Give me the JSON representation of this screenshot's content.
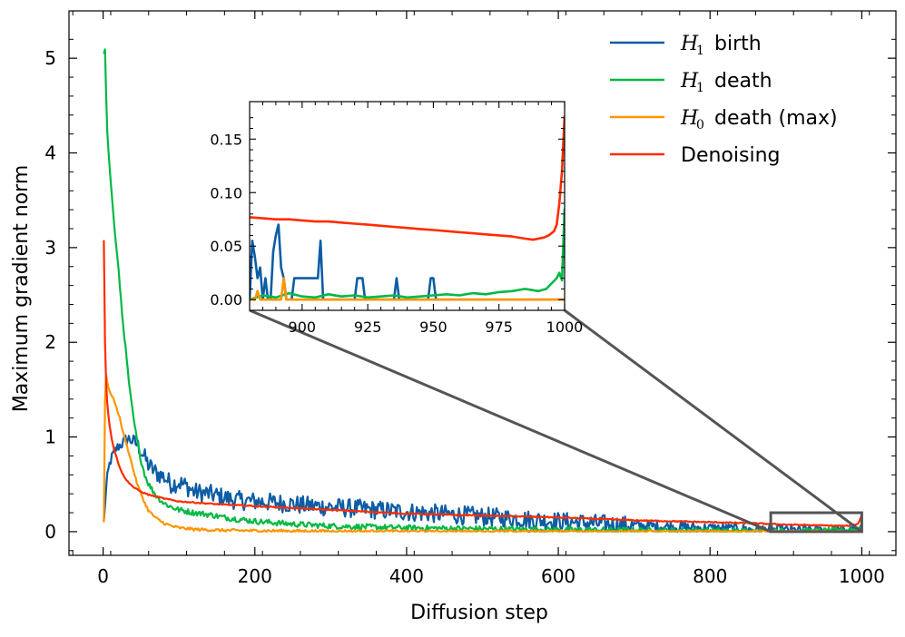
{
  "chart_data": {
    "type": "line",
    "title": "",
    "xlabel": "Diffusion step",
    "ylabel": "Maximum gradient norm",
    "xlim": [
      -45,
      1045
    ],
    "ylim": [
      -0.25,
      5.5
    ],
    "x_ticks": [
      0,
      200,
      400,
      600,
      800,
      1000
    ],
    "x_tick_labels": [
      "0",
      "200",
      "400",
      "600",
      "800",
      "1000"
    ],
    "y_ticks": [
      0,
      1,
      2,
      3,
      4,
      5
    ],
    "y_tick_labels": [
      "0",
      "1",
      "2",
      "3",
      "4",
      "5"
    ],
    "legend_position": "top-right",
    "series": [
      {
        "name": "H1 birth",
        "label_symbol": "H",
        "label_subscript": "1",
        "label_rest": "birth",
        "color": "#0C5DA5",
        "x": [
          1,
          3,
          5,
          8,
          12,
          16,
          20,
          25,
          30,
          35,
          40,
          45,
          50,
          55,
          60,
          70,
          80,
          90,
          100,
          110,
          120,
          130,
          140,
          150,
          160,
          170,
          180,
          200,
          220,
          240,
          260,
          280,
          300,
          320,
          340,
          360,
          380,
          400,
          420,
          440,
          460,
          480,
          500,
          520,
          540,
          560,
          580,
          600,
          620,
          640,
          660,
          680,
          700,
          720,
          740,
          760,
          780,
          800,
          820,
          840,
          860,
          880,
          900,
          920,
          940,
          960,
          980,
          1000
        ],
        "y": [
          0.1,
          0.35,
          0.55,
          0.7,
          0.8,
          0.86,
          0.9,
          0.93,
          0.97,
          0.98,
          0.95,
          0.92,
          0.85,
          0.78,
          0.7,
          0.62,
          0.58,
          0.5,
          0.52,
          0.48,
          0.42,
          0.41,
          0.4,
          0.38,
          0.36,
          0.34,
          0.33,
          0.32,
          0.31,
          0.3,
          0.28,
          0.27,
          0.26,
          0.25,
          0.24,
          0.23,
          0.22,
          0.21,
          0.2,
          0.19,
          0.18,
          0.17,
          0.16,
          0.15,
          0.14,
          0.13,
          0.12,
          0.11,
          0.1,
          0.09,
          0.08,
          0.07,
          0.065,
          0.06,
          0.055,
          0.05,
          0.04,
          0.035,
          0.03,
          0.025,
          0.02,
          0.015,
          0.01,
          0.01,
          0.012,
          0.008,
          0.006,
          0.005
        ],
        "noise": 0.1
      },
      {
        "name": "H1 death",
        "label_symbol": "H",
        "label_subscript": "1",
        "label_rest": "death",
        "color": "#00B945",
        "x": [
          1,
          2,
          3,
          5,
          8,
          10,
          12,
          15,
          18,
          20,
          25,
          30,
          35,
          40,
          45,
          50,
          55,
          60,
          70,
          80,
          90,
          100,
          120,
          140,
          160,
          180,
          200,
          250,
          300,
          400,
          500,
          600,
          700,
          800,
          880,
          950,
          990,
          1000
        ],
        "y": [
          5.05,
          5.3,
          4.9,
          4.3,
          3.9,
          3.7,
          3.5,
          3.2,
          2.95,
          2.8,
          2.3,
          1.9,
          1.5,
          1.2,
          0.95,
          0.75,
          0.6,
          0.5,
          0.38,
          0.3,
          0.26,
          0.23,
          0.2,
          0.18,
          0.15,
          0.13,
          0.11,
          0.08,
          0.06,
          0.04,
          0.03,
          0.02,
          0.015,
          0.01,
          0.005,
          0.008,
          0.02,
          0.05
        ],
        "noise": 0.03
      },
      {
        "name": "H0 death (max)",
        "label_symbol": "H",
        "label_subscript": "0",
        "label_rest": "death (max)",
        "color": "#FF9500",
        "x": [
          1,
          2,
          3,
          4,
          6,
          8,
          10,
          14,
          18,
          22,
          26,
          30,
          35,
          40,
          45,
          50,
          55,
          60,
          70,
          80,
          90,
          100,
          120,
          150,
          200,
          300,
          400,
          600,
          800,
          1000
        ],
        "y": [
          0.1,
          1.25,
          1.55,
          1.65,
          1.55,
          1.5,
          1.45,
          1.4,
          1.3,
          1.2,
          1.05,
          0.95,
          0.8,
          0.65,
          0.5,
          0.4,
          0.3,
          0.22,
          0.14,
          0.09,
          0.06,
          0.04,
          0.025,
          0.015,
          0.01,
          0.005,
          0.003,
          0.002,
          0.001,
          0.0
        ],
        "noise": 0.015
      },
      {
        "name": "Denoising",
        "label_symbol": "",
        "label_subscript": "",
        "label_rest": "Denoising",
        "color": "#FF2C00",
        "x": [
          1,
          2,
          3,
          4,
          5,
          6,
          8,
          10,
          12,
          15,
          18,
          20,
          25,
          30,
          40,
          50,
          60,
          80,
          100,
          150,
          200,
          250,
          300,
          350,
          400,
          500,
          600,
          700,
          800,
          850,
          900,
          950,
          980,
          995,
          1000
        ],
        "y": [
          3.08,
          2.2,
          1.8,
          1.55,
          1.4,
          1.3,
          1.15,
          1.05,
          0.95,
          0.85,
          0.78,
          0.72,
          0.62,
          0.55,
          0.47,
          0.42,
          0.39,
          0.35,
          0.32,
          0.29,
          0.27,
          0.25,
          0.23,
          0.21,
          0.19,
          0.17,
          0.15,
          0.12,
          0.1,
          0.09,
          0.075,
          0.065,
          0.06,
          0.08,
          0.175
        ],
        "noise": 0.006
      }
    ],
    "inset": {
      "xlim": [
        880,
        1000
      ],
      "ylim": [
        -0.01,
        0.185
      ],
      "x_ticks": [
        900,
        925,
        950,
        975,
        1000
      ],
      "x_tick_labels": [
        "900",
        "925",
        "950",
        "975",
        "1000"
      ],
      "y_ticks": [
        0.0,
        0.05,
        0.1,
        0.15
      ],
      "y_tick_labels": [
        "0.00",
        "0.05",
        "0.10",
        "0.15"
      ],
      "zoom_box_x": [
        880,
        1000
      ],
      "zoom_box_y": [
        0.0,
        0.2
      ],
      "series": [
        {
          "name": "H1 birth",
          "color": "#0C5DA5",
          "x": [
            880,
            881,
            882,
            883,
            884,
            885,
            886,
            887,
            888,
            889,
            890,
            891,
            892,
            893,
            894,
            895,
            896,
            897,
            898,
            899,
            900,
            901,
            902,
            903,
            904,
            905,
            906,
            907,
            908,
            909,
            910,
            912,
            914,
            916,
            918,
            920,
            921,
            922,
            923,
            924,
            926,
            928,
            930,
            932,
            934,
            935,
            936,
            937,
            938,
            940,
            942,
            944,
            946,
            948,
            949,
            950,
            951,
            952,
            954,
            956,
            958,
            960,
            970,
            980,
            990,
            1000
          ],
          "y": [
            0.0,
            0.055,
            0.04,
            0.02,
            0.03,
            0.0,
            0.02,
            0.0,
            0.0,
            0.045,
            0.06,
            0.07,
            0.03,
            0.02,
            0.0,
            0.0,
            0.0,
            0.02,
            0.02,
            0.02,
            0.02,
            0.02,
            0.02,
            0.02,
            0.02,
            0.02,
            0.02,
            0.055,
            0.0,
            0.0,
            0.0,
            0.0,
            0.0,
            0.0,
            0.0,
            0.0,
            0.02,
            0.02,
            0.02,
            0.0,
            0.0,
            0.0,
            0.0,
            0.0,
            0.0,
            0.0,
            0.02,
            0.0,
            0.0,
            0.0,
            0.0,
            0.0,
            0.0,
            0.0,
            0.02,
            0.02,
            0.0,
            0.0,
            0.0,
            0.0,
            0.0,
            0.0,
            0.0,
            0.0,
            0.0,
            0.0
          ]
        },
        {
          "name": "H1 death",
          "color": "#00B945",
          "x": [
            880,
            885,
            890,
            895,
            900,
            905,
            910,
            915,
            920,
            925,
            930,
            935,
            940,
            945,
            950,
            955,
            960,
            965,
            970,
            975,
            980,
            985,
            990,
            993,
            995,
            997,
            998,
            999,
            1000
          ],
          "y": [
            0.0,
            0.004,
            0.002,
            0.006,
            0.003,
            0.002,
            0.005,
            0.003,
            0.004,
            0.002,
            0.003,
            0.004,
            0.002,
            0.003,
            0.004,
            0.005,
            0.004,
            0.006,
            0.005,
            0.007,
            0.008,
            0.01,
            0.008,
            0.01,
            0.015,
            0.02,
            0.025,
            0.018,
            0.085
          ]
        },
        {
          "name": "H0 death (max)",
          "color": "#FF9500",
          "x": [
            880,
            882,
            883,
            884,
            885,
            888,
            890,
            892,
            893,
            894,
            895,
            900,
            920,
            940,
            960,
            980,
            1000
          ],
          "y": [
            0.0,
            0.0,
            0.008,
            0.0,
            0.0,
            0.0,
            0.0,
            0.0,
            0.02,
            0.0,
            0.0,
            0.0,
            0.0,
            0.0,
            0.0,
            0.0,
            0.0
          ]
        },
        {
          "name": "Denoising",
          "color": "#FF2C00",
          "x": [
            880,
            885,
            890,
            895,
            900,
            905,
            910,
            915,
            920,
            925,
            930,
            935,
            940,
            945,
            950,
            955,
            960,
            965,
            970,
            975,
            980,
            985,
            988,
            990,
            992,
            994,
            996,
            997,
            998,
            999,
            1000
          ],
          "y": [
            0.077,
            0.076,
            0.075,
            0.075,
            0.074,
            0.073,
            0.073,
            0.072,
            0.071,
            0.07,
            0.069,
            0.068,
            0.067,
            0.066,
            0.065,
            0.064,
            0.063,
            0.062,
            0.061,
            0.06,
            0.059,
            0.057,
            0.056,
            0.057,
            0.058,
            0.06,
            0.064,
            0.07,
            0.09,
            0.12,
            0.172
          ]
        }
      ]
    }
  }
}
